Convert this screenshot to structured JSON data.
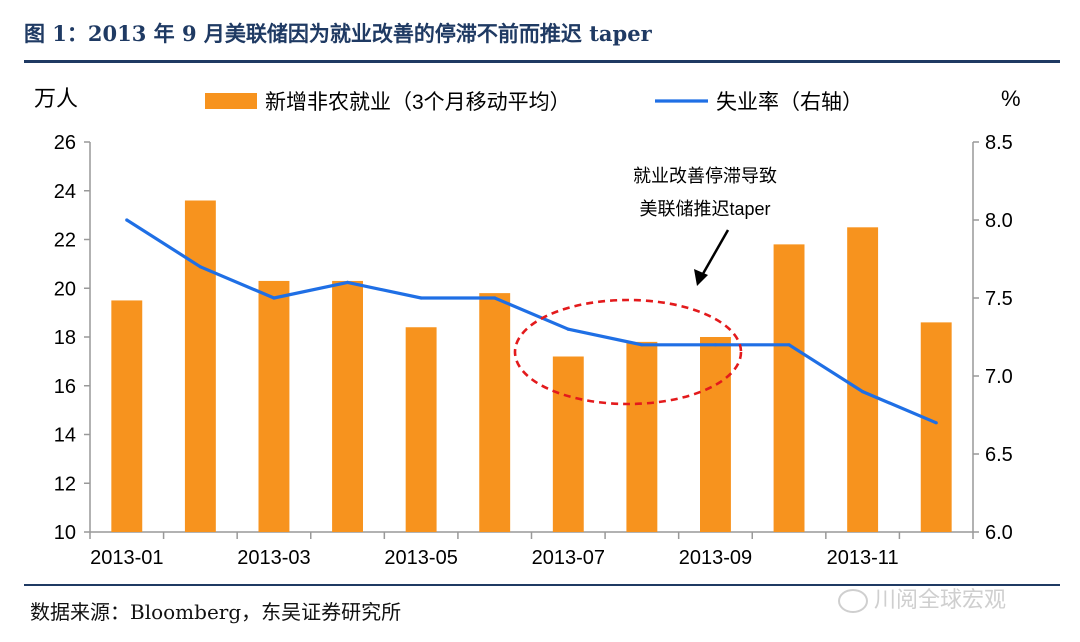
{
  "header": {
    "title": "图 1：2013 年 9 月美联储因为就业改善的停滞不前而推迟 taper"
  },
  "footer": {
    "source": "数据来源：Bloomberg，东吴证券研究所",
    "watermark": "川阅全球宏观"
  },
  "chart_data": {
    "type": "bar",
    "title": "",
    "left_unit_label": "万人",
    "right_unit_label": "%",
    "categories": [
      "2013-01",
      "2013-02",
      "2013-03",
      "2013-04",
      "2013-05",
      "2013-06",
      "2013-07",
      "2013-08",
      "2013-09",
      "2013-10",
      "2013-11",
      "2013-12"
    ],
    "x_tick_labels": [
      "2013-01",
      "2013-03",
      "2013-05",
      "2013-07",
      "2013-09",
      "2013-11"
    ],
    "left_axis": {
      "range": [
        10,
        26
      ],
      "ticks": [
        "10",
        "12",
        "14",
        "16",
        "18",
        "20",
        "22",
        "24",
        "26"
      ]
    },
    "right_axis": {
      "range": [
        6.0,
        8.5
      ],
      "ticks": [
        "6.0",
        "6.5",
        "7.0",
        "7.5",
        "8.0",
        "8.5"
      ]
    },
    "series": [
      {
        "name": "新增非农就业（3个月移动平均）",
        "type": "bar",
        "axis": "left",
        "color": "#F7931E",
        "values": [
          19.5,
          23.6,
          20.3,
          20.3,
          18.4,
          19.8,
          17.2,
          17.8,
          18.0,
          21.8,
          22.5,
          18.6
        ]
      },
      {
        "name": "失业率（右轴）",
        "type": "line",
        "axis": "right",
        "color": "#1F6FE5",
        "values": [
          8.0,
          7.7,
          7.5,
          7.6,
          7.5,
          7.5,
          7.3,
          7.2,
          7.2,
          7.2,
          6.9,
          6.7
        ]
      }
    ],
    "annotation": {
      "lines": [
        "就业改善停滞导致",
        "美联储推迟taper"
      ],
      "ellipse_color": "#E31A1C"
    },
    "legend_position": "top",
    "grid": false
  }
}
